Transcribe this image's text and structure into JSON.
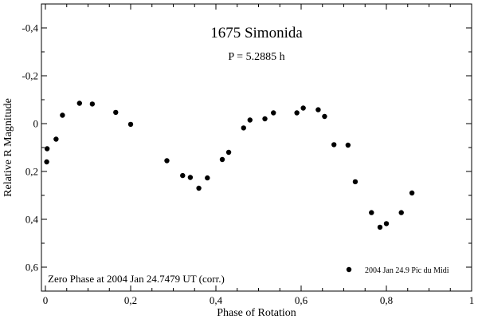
{
  "chart_data": {
    "type": "scatter",
    "title": "1675 Simonida",
    "subtitle": "P = 5.2885 h",
    "xlabel": "Phase of Rotation",
    "ylabel": "Relative R Magnitude",
    "xlim": [
      0,
      1
    ],
    "ylim": [
      -0.5,
      0.7
    ],
    "y_inverted": true,
    "grid": false,
    "x_ticks": [
      0,
      0.2,
      0.4,
      0.6,
      0.8,
      1
    ],
    "x_tick_labels": [
      "0",
      "0,2",
      "0,4",
      "0,6",
      "0,8",
      "1"
    ],
    "y_ticks": [
      -0.4,
      -0.2,
      0,
      0.2,
      0.4,
      0.6
    ],
    "y_tick_labels": [
      "-0,4",
      "-0,2",
      "0",
      "0,2",
      "0,4",
      "0,6"
    ],
    "annotation": "Zero Phase at 2004 Jan 24.7479 UT (corr.)",
    "legend": {
      "placement": "bottom-right",
      "label": "2004 Jan 24.9 Pic du Midi"
    },
    "series": [
      {
        "name": "2004 Jan 24.9 Pic du Midi",
        "points": [
          {
            "x": 0.003,
            "y": 0.16
          },
          {
            "x": 0.004,
            "y": 0.105
          },
          {
            "x": 0.025,
            "y": 0.065
          },
          {
            "x": 0.04,
            "y": -0.035
          },
          {
            "x": 0.08,
            "y": -0.085
          },
          {
            "x": 0.11,
            "y": -0.082
          },
          {
            "x": 0.165,
            "y": -0.047
          },
          {
            "x": 0.2,
            "y": 0.003
          },
          {
            "x": 0.285,
            "y": 0.155
          },
          {
            "x": 0.322,
            "y": 0.217
          },
          {
            "x": 0.34,
            "y": 0.225
          },
          {
            "x": 0.36,
            "y": 0.27
          },
          {
            "x": 0.38,
            "y": 0.227
          },
          {
            "x": 0.415,
            "y": 0.15
          },
          {
            "x": 0.43,
            "y": 0.12
          },
          {
            "x": 0.465,
            "y": 0.018
          },
          {
            "x": 0.48,
            "y": -0.015
          },
          {
            "x": 0.515,
            "y": -0.02
          },
          {
            "x": 0.535,
            "y": -0.045
          },
          {
            "x": 0.59,
            "y": -0.045
          },
          {
            "x": 0.605,
            "y": -0.065
          },
          {
            "x": 0.64,
            "y": -0.058
          },
          {
            "x": 0.655,
            "y": -0.03
          },
          {
            "x": 0.677,
            "y": 0.088
          },
          {
            "x": 0.71,
            "y": 0.09
          },
          {
            "x": 0.727,
            "y": 0.243
          },
          {
            "x": 0.765,
            "y": 0.372
          },
          {
            "x": 0.785,
            "y": 0.433
          },
          {
            "x": 0.8,
            "y": 0.418
          },
          {
            "x": 0.835,
            "y": 0.372
          },
          {
            "x": 0.86,
            "y": 0.29
          }
        ]
      }
    ]
  }
}
